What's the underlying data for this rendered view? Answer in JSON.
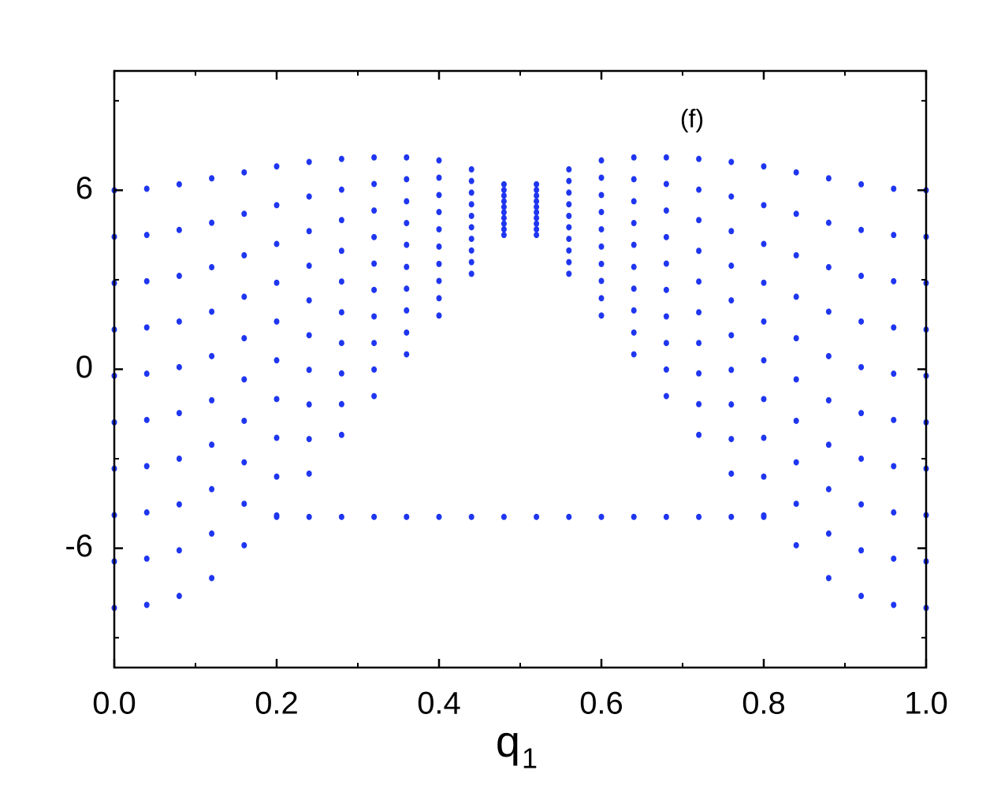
{
  "chart_data": {
    "type": "scatter",
    "annotation": "(f)",
    "xlabel": "q",
    "xlabel_subscript": "1",
    "color": "#1f36f0",
    "xlim": [
      0,
      1
    ],
    "ylim": [
      -10,
      10
    ],
    "xticks": [
      {
        "value": 0,
        "label": "0.0"
      },
      {
        "value": 0.2,
        "label": "0.2"
      },
      {
        "value": 0.4,
        "label": "0.4"
      },
      {
        "value": 0.6,
        "label": "0.6"
      },
      {
        "value": 0.8,
        "label": "0.8"
      },
      {
        "value": 1,
        "label": "1.0"
      }
    ],
    "xminor_ticks": [
      0.1,
      0.3,
      0.5,
      0.7,
      0.9
    ],
    "yticks": [
      -6,
      0,
      6
    ],
    "yminor_ticks": [
      -9,
      -3,
      3,
      9
    ],
    "x": [
      0,
      0.04,
      0.08,
      0.12,
      0.16,
      0.2,
      0.24,
      0.28,
      0.32,
      0.36,
      0.4,
      0.44,
      0.48,
      0.52,
      0.56,
      0.6,
      0.64,
      0.68,
      0.72,
      0.76,
      0.8,
      0.84,
      0.88,
      0.92,
      0.96,
      1
    ],
    "series": [
      {
        "values": [
          -8,
          -7.9,
          -7.6,
          -7,
          -5.9,
          -4.9,
          -3.5,
          -2.2,
          -0.9,
          0.5,
          1.8,
          3.2,
          4.5,
          4.5,
          3.2,
          1.8,
          0.5,
          -0.9,
          -2.2,
          -3.5,
          -4.9,
          -5.9,
          -7,
          -7.6,
          -7.9,
          -8
        ]
      },
      {
        "values": [
          -6.44,
          -6.35,
          -6.07,
          -5.51,
          -4.51,
          -3.6,
          -2.34,
          -1.17,
          -0.01,
          1.23,
          2.38,
          3.59,
          4.69,
          4.69,
          3.59,
          2.38,
          1.23,
          -0.01,
          -1.17,
          -2.34,
          -3.6,
          -4.51,
          -5.51,
          -6.07,
          -6.35,
          -6.44
        ]
      },
      {
        "values": [
          -4.89,
          -4.8,
          -4.53,
          -4.02,
          -3.12,
          -2.3,
          -1.18,
          -0.14,
          0.88,
          1.97,
          2.96,
          3.98,
          4.88,
          4.88,
          3.98,
          2.96,
          1.97,
          0.88,
          -0.14,
          -1.18,
          -2.3,
          -3.12,
          -4.02,
          -4.53,
          -4.8,
          -4.89
        ]
      },
      {
        "values": [
          -3.33,
          -3.25,
          -3,
          -2.53,
          -1.73,
          -1,
          -0.02,
          0.88,
          1.77,
          2.7,
          3.53,
          4.37,
          5.07,
          5.07,
          4.37,
          3.53,
          2.7,
          1.77,
          0.88,
          -0.02,
          -1,
          -1.73,
          -2.53,
          -3,
          -3.25,
          -3.33
        ]
      },
      {
        "values": [
          -1.78,
          -1.7,
          -1.47,
          -1.04,
          -0.34,
          0.3,
          1.14,
          1.91,
          2.66,
          3.43,
          4.11,
          4.76,
          5.26,
          5.26,
          4.76,
          4.11,
          3.43,
          2.66,
          1.91,
          1.14,
          0.3,
          -0.34,
          -1.04,
          -1.47,
          -1.7,
          -1.78
        ]
      },
      {
        "values": [
          -0.22,
          -0.15,
          0.07,
          0.44,
          1.04,
          1.6,
          2.31,
          2.94,
          3.54,
          4.17,
          4.69,
          5.14,
          5.44,
          5.44,
          5.14,
          4.69,
          4.17,
          3.54,
          2.94,
          2.31,
          1.6,
          1.04,
          0.44,
          0.07,
          -0.15,
          -0.22
        ]
      },
      {
        "values": [
          1.33,
          1.4,
          1.6,
          1.93,
          2.43,
          2.9,
          3.47,
          3.97,
          4.43,
          4.9,
          5.27,
          5.53,
          5.63,
          5.63,
          5.53,
          5.27,
          4.9,
          4.43,
          3.97,
          3.47,
          2.9,
          2.43,
          1.93,
          1.6,
          1.4,
          1.33
        ]
      },
      {
        "values": [
          2.89,
          2.95,
          3.13,
          3.42,
          3.82,
          4.2,
          4.63,
          5,
          5.32,
          5.63,
          5.84,
          5.92,
          5.82,
          5.82,
          5.92,
          5.84,
          5.63,
          5.32,
          5,
          4.63,
          4.2,
          3.82,
          3.42,
          3.13,
          2.95,
          2.89
        ]
      },
      {
        "values": [
          4.44,
          4.5,
          4.67,
          4.91,
          5.21,
          5.5,
          5.79,
          6.02,
          6.21,
          6.37,
          6.42,
          6.31,
          6.01,
          6.01,
          6.31,
          6.42,
          6.37,
          6.21,
          6.02,
          5.79,
          5.5,
          5.21,
          4.91,
          4.67,
          4.5,
          4.44
        ]
      },
      {
        "values": [
          6,
          6.05,
          6.2,
          6.4,
          6.6,
          6.8,
          6.95,
          7.05,
          7.1,
          7.1,
          7,
          6.7,
          6.2,
          6.2,
          6.7,
          7,
          7.1,
          7.1,
          7.05,
          6.95,
          6.8,
          6.6,
          6.4,
          6.2,
          6.05,
          6
        ]
      },
      {
        "values": [
          null,
          null,
          null,
          null,
          null,
          -4.95,
          -4.95,
          -4.95,
          -4.95,
          -4.95,
          -4.95,
          -4.95,
          -4.95,
          -4.95,
          -4.95,
          -4.95,
          -4.95,
          -4.95,
          -4.95,
          -4.95,
          -4.95,
          null,
          null,
          null,
          null,
          null
        ]
      }
    ]
  }
}
